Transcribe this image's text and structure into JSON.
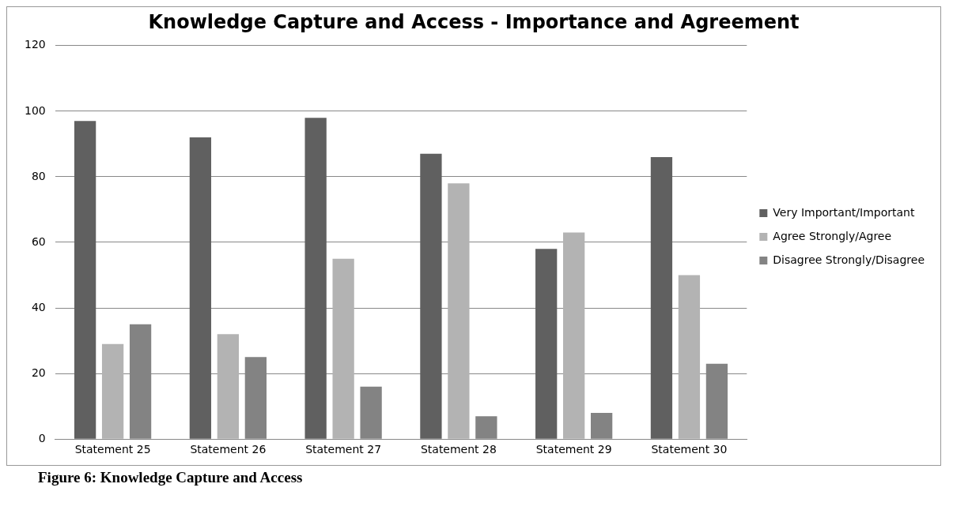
{
  "chart_data": {
    "type": "bar",
    "title": "Knowledge Capture and Access - Importance and Agreement",
    "categories": [
      "Statement 25",
      "Statement 26",
      "Statement 27",
      "Statement 28",
      "Statement 29",
      "Statement 30"
    ],
    "series": [
      {
        "name": "Very Important/Important",
        "color": "#606060",
        "values": [
          97,
          92,
          98,
          87,
          58,
          86
        ]
      },
      {
        "name": "Agree Strongly/Agree",
        "color": "#b3b3b3",
        "values": [
          29,
          32,
          55,
          78,
          63,
          50
        ]
      },
      {
        "name": "Disagree Strongly/Disagree",
        "color": "#838383",
        "values": [
          35,
          25,
          16,
          7,
          8,
          23
        ]
      }
    ],
    "ylim": [
      0,
      120
    ],
    "yticks": [
      0,
      20,
      40,
      60,
      80,
      100,
      120
    ],
    "grid": "y",
    "legend": "right",
    "annotations": [
      "Figure 6: Knowledge Capture and Access"
    ]
  }
}
